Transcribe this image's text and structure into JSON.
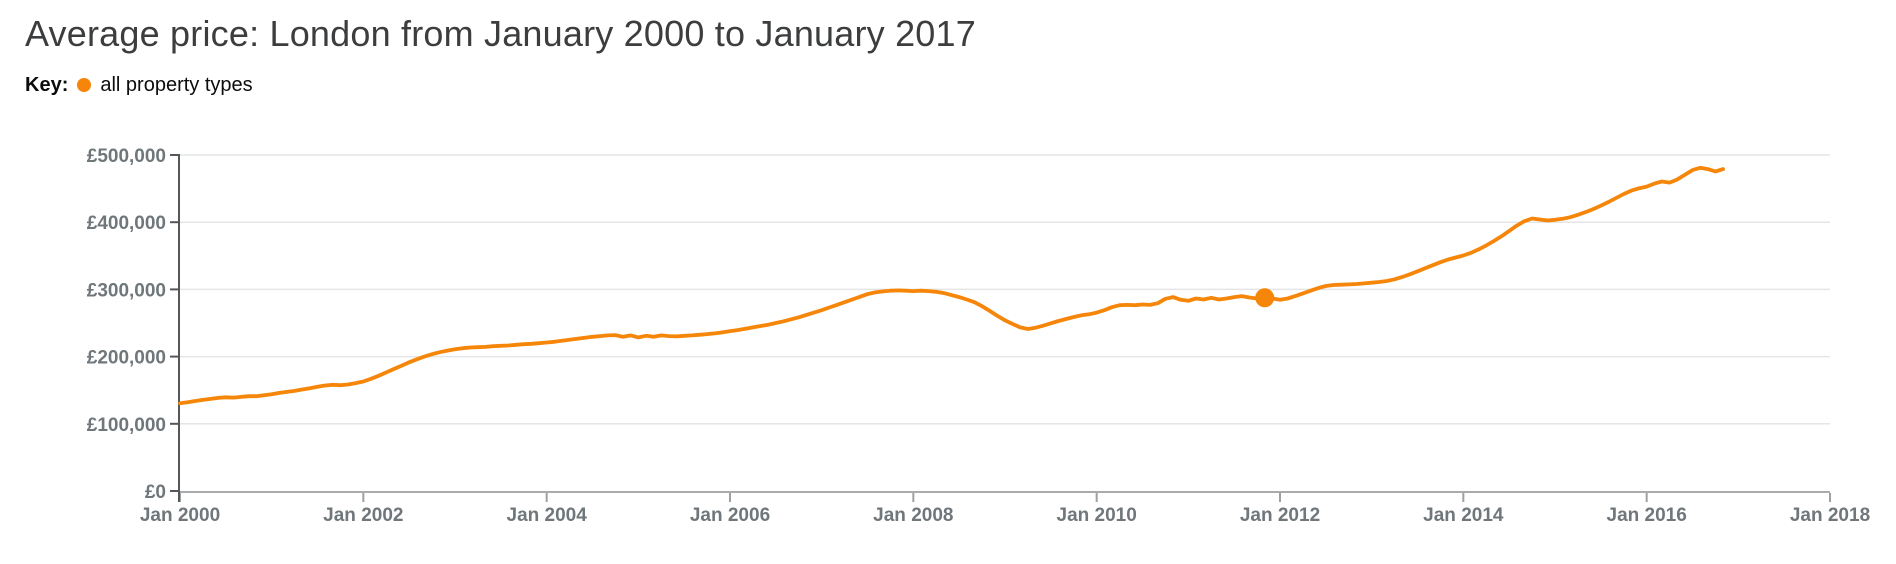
{
  "header": {
    "title": "Average price: London from January 2000 to January 2017",
    "key": {
      "prefix": "Key:",
      "series_label": "all property types"
    }
  },
  "colors": {
    "series": "#f68609",
    "title_text": "#3c3d3e",
    "key_text": "#0b0c0c",
    "axis_label": "#6f777b",
    "gridline": "#e4e5e6",
    "x_axis_line": "#a9abad",
    "y_axis_line": "#54585a",
    "x_tick": "#9ca1a4",
    "background": "#ffffff"
  },
  "chart_data": {
    "type": "line",
    "title": "Average price: London from January 2000 to January 2017",
    "grid": "horizontal-only",
    "legend_position": "top-left",
    "x_axis": {
      "interval": "monthly",
      "start_month": "2000-01",
      "months_span": 216,
      "months_per_tick": 24,
      "tick_labels": [
        "Jan 2000",
        "Jan 2002",
        "Jan 2004",
        "Jan 2006",
        "Jan 2008",
        "Jan 2010",
        "Jan 2012",
        "Jan 2014",
        "Jan 2016",
        "Jan 2018"
      ]
    },
    "y_axis": {
      "min": 0,
      "max": 500000,
      "tick_step": 100000,
      "currency": "GBP",
      "tick_labels": [
        "£0",
        "£100,000",
        "£200,000",
        "£300,000",
        "£400,000",
        "£500,000"
      ]
    },
    "series": [
      {
        "name": "all property types",
        "unit": "£",
        "first_month": "2000-01",
        "last_month": "2016-11",
        "values": [
          130500,
          132000,
          134000,
          135500,
          137000,
          138500,
          139500,
          139000,
          140000,
          141000,
          141000,
          142500,
          144000,
          146000,
          147500,
          149000,
          151000,
          153000,
          155000,
          157000,
          158000,
          157500,
          158500,
          160500,
          163000,
          167000,
          171500,
          176500,
          181500,
          186500,
          191500,
          196000,
          200000,
          203500,
          206500,
          209000,
          211000,
          212500,
          213500,
          214000,
          214500,
          215500,
          216000,
          216500,
          217500,
          218500,
          219000,
          220000,
          221000,
          222000,
          223500,
          225000,
          226500,
          228000,
          229500,
          230500,
          231500,
          232000,
          229500,
          231500,
          228500,
          231000,
          229500,
          231500,
          230500,
          230000,
          231000,
          231500,
          232500,
          233500,
          234500,
          236000,
          238000,
          239500,
          241500,
          243500,
          245500,
          247500,
          250000,
          252500,
          255500,
          258500,
          262000,
          265500,
          269000,
          273000,
          277000,
          281000,
          285000,
          289000,
          293000,
          295500,
          297000,
          298000,
          298500,
          298000,
          297500,
          298000,
          297500,
          296500,
          294500,
          291500,
          288500,
          285000,
          281000,
          275000,
          268000,
          260500,
          254000,
          248500,
          243500,
          241000,
          243000,
          246000,
          249500,
          253000,
          256000,
          259000,
          261500,
          263000,
          265500,
          269000,
          273500,
          276500,
          277000,
          276500,
          277500,
          277000,
          279500,
          286000,
          288500,
          284500,
          283000,
          286500,
          285000,
          287500,
          285000,
          286500,
          288500,
          290000,
          288000,
          286500,
          287500,
          286500,
          284500,
          286500,
          290000,
          294000,
          298000,
          302000,
          305000,
          306500,
          307000,
          307500,
          308000,
          309000,
          310000,
          311000,
          312500,
          315000,
          318500,
          322500,
          327000,
          331500,
          336000,
          340500,
          344500,
          347500,
          350500,
          354500,
          359500,
          365500,
          372000,
          379000,
          387000,
          395000,
          401500,
          405500,
          404000,
          402500,
          403500,
          405000,
          407500,
          411000,
          415000,
          419500,
          424500,
          430000,
          436000,
          442000,
          447000,
          450500,
          453000,
          457500,
          460500,
          459000,
          463500,
          470500,
          477500,
          481000,
          479000,
          475500,
          479000
        ]
      }
    ],
    "highlight_point": {
      "label": "November 2011",
      "month_index": 142,
      "value": 287500
    }
  }
}
